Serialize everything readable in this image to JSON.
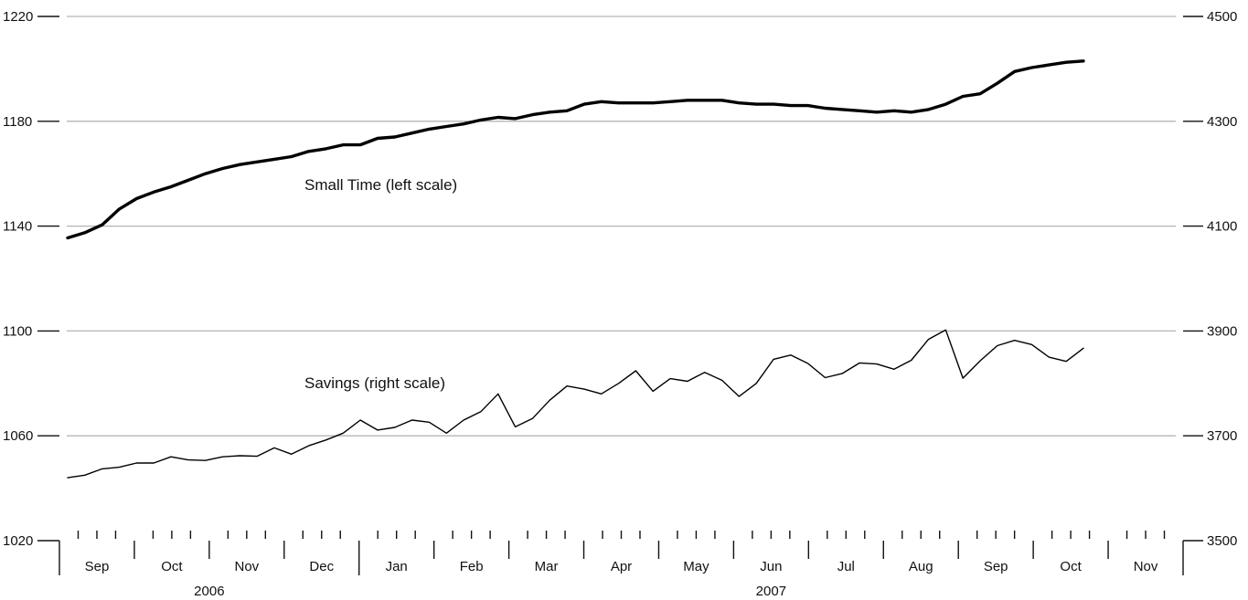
{
  "chart_data": {
    "type": "line",
    "x_axis": {
      "months": [
        "Sep",
        "Oct",
        "Nov",
        "Dec",
        "Jan",
        "Feb",
        "Mar",
        "Apr",
        "May",
        "Jun",
        "Jul",
        "Aug",
        "Sep",
        "Oct",
        "Nov"
      ],
      "years": [
        {
          "label": "2006",
          "months": [
            "Sep",
            "Oct",
            "Nov",
            "Dec"
          ]
        },
        {
          "label": "2007",
          "months": [
            "Jan",
            "Feb",
            "Mar",
            "Apr",
            "May",
            "Jun",
            "Jul",
            "Aug",
            "Sep",
            "Oct",
            "Nov"
          ]
        }
      ],
      "minor_ticks": "weekly"
    },
    "left_axis": {
      "ticks": [
        1020,
        1060,
        1100,
        1140,
        1180,
        1220
      ],
      "range": [
        1020,
        1220
      ]
    },
    "right_axis": {
      "ticks": [
        3500,
        3700,
        3900,
        4100,
        4300,
        4500
      ],
      "range": [
        3500,
        4500
      ]
    },
    "grid": "horizontal",
    "series": [
      {
        "name": "Small Time (left scale)",
        "axis": "left",
        "line": "thick",
        "values": [
          1135.5,
          1137.5,
          1140.5,
          1146.5,
          1150.5,
          1153.0,
          1155.0,
          1157.5,
          1160.0,
          1162.0,
          1163.5,
          1164.5,
          1165.5,
          1166.5,
          1168.5,
          1169.5,
          1171.0,
          1171.0,
          1173.5,
          1174.0,
          1175.5,
          1177.0,
          1178.0,
          1179.0,
          1180.5,
          1181.5,
          1181.0,
          1182.5,
          1183.5,
          1184.0,
          1186.5,
          1187.5,
          1187.0,
          1187.0,
          1187.0,
          1187.5,
          1188.0,
          1188.0,
          1188.0,
          1187.0,
          1186.5,
          1186.5,
          1186.0,
          1186.0,
          1185.0,
          1184.5,
          1184.0,
          1183.5,
          1184.0,
          1183.5,
          1184.5,
          1186.5,
          1189.5,
          1190.5,
          1194.5,
          1199.0,
          1200.5,
          1201.5,
          1202.5,
          1203.0
        ]
      },
      {
        "name": "Savings (right scale)",
        "axis": "right",
        "line": "thin",
        "values": [
          3620,
          3625,
          3637,
          3640,
          3648,
          3648,
          3660,
          3654,
          3653,
          3660,
          3662,
          3661,
          3677,
          3665,
          3681,
          3692,
          3705,
          3730,
          3711,
          3716,
          3730,
          3726,
          3705,
          3730,
          3746,
          3780,
          3717,
          3733,
          3768,
          3795,
          3789,
          3780,
          3800,
          3824,
          3785,
          3809,
          3804,
          3821,
          3806,
          3775,
          3800,
          3846,
          3854,
          3838,
          3811,
          3819,
          3839,
          3837,
          3827,
          3844,
          3884,
          3902,
          3810,
          3843,
          3872,
          3882,
          3874,
          3850,
          3842,
          3867
        ]
      }
    ],
    "annotations": [
      {
        "text": "Small Time (left scale)",
        "series": 0
      },
      {
        "text": "Savings (right scale)",
        "series": 1
      }
    ]
  }
}
